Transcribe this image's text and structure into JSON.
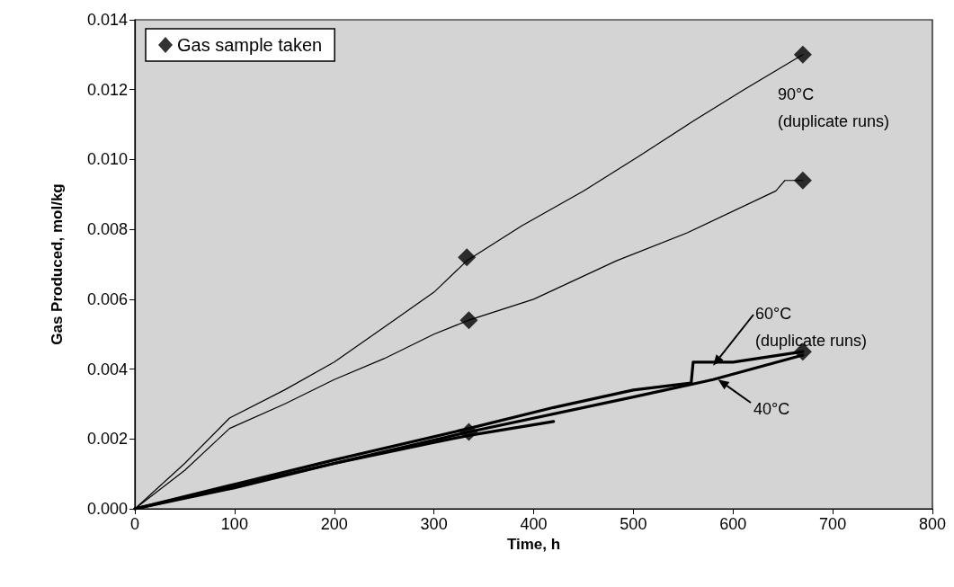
{
  "chart_data": {
    "type": "line",
    "xlabel": "Time, h",
    "ylabel": "Gas Produced, mol/kg",
    "xlim": [
      0,
      800
    ],
    "xticks": [
      0,
      100,
      200,
      300,
      400,
      500,
      600,
      700,
      800
    ],
    "ylim": [
      0,
      0.014
    ],
    "yticks": [
      {
        "value": 0,
        "label": "0.000"
      },
      {
        "value": 0.002,
        "label": "0.002"
      },
      {
        "value": 0.004,
        "label": "0.004"
      },
      {
        "value": 0.006,
        "label": "0.006"
      },
      {
        "value": 0.008,
        "label": "0.008"
      },
      {
        "value": 0.01,
        "label": "0.010"
      },
      {
        "value": 0.012,
        "label": "0.012"
      },
      {
        "value": 0.014,
        "label": "0.014"
      }
    ],
    "grid": false,
    "legend": "top left",
    "marker": "none",
    "line_style": "solid",
    "series": [
      {
        "type": "line",
        "color": "#000000",
        "x": [
          0,
          50,
          95,
          150,
          200,
          250,
          300,
          333,
          388,
          450,
          506,
          560,
          611,
          670
        ],
        "values": [
          0,
          0.0013,
          0.0026,
          0.0034,
          0.0042,
          0.0052,
          0.0062,
          0.0071,
          0.0081,
          0.0091,
          0.0101,
          0.0111,
          0.012,
          0.013
        ]
      },
      {
        "type": "line",
        "color": "#000000",
        "x": [
          0,
          50,
          95,
          150,
          200,
          250,
          300,
          335,
          400,
          483,
          554,
          643,
          652,
          670
        ],
        "values": [
          0,
          0.0011,
          0.0023,
          0.003,
          0.0037,
          0.0043,
          0.005,
          0.0054,
          0.006,
          0.0071,
          0.0079,
          0.0091,
          0.0094,
          0.0094
        ]
      },
      {
        "type": "line",
        "color": "#000000",
        "x": [
          0,
          100,
          200,
          335,
          420,
          500,
          558,
          560,
          600,
          670
        ],
        "values": [
          0,
          0.0007,
          0.0014,
          0.0023,
          0.0029,
          0.0034,
          0.0036,
          0.0042,
          0.0042,
          0.0045
        ]
      },
      {
        "type": "line",
        "color": "#000000",
        "x": [
          0,
          100,
          200,
          300,
          335,
          420
        ],
        "values": [
          0,
          0.0006,
          0.0013,
          0.0019,
          0.0021,
          0.0025
        ]
      },
      {
        "type": "line",
        "color": "#000000",
        "x": [
          0,
          200,
          335,
          500,
          580,
          670
        ],
        "values": [
          0,
          0.0013,
          0.0022,
          0.0032,
          0.0037,
          0.0044
        ]
      },
      {
        "type": "scatter",
        "name": "Gas sample taken",
        "marker": "diamond",
        "color": "#000000",
        "x": [
          333,
          335,
          335,
          670,
          670,
          670
        ],
        "values": [
          0.0072,
          0.0054,
          0.0022,
          0.013,
          0.0094,
          0.0045
        ]
      }
    ],
    "annotations": [
      "90°C\n(duplicate runs)",
      {
        "text": "60°C\n(duplicate runs)",
        "x": 580,
        "y": 0.0041
      },
      {
        "text": "40°C",
        "x": 585,
        "y": 0.0037
      }
    ]
  }
}
